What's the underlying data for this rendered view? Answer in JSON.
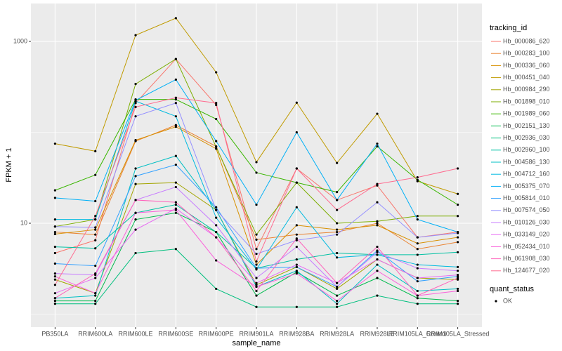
{
  "chart_data": {
    "type": "line",
    "log_y": true,
    "xlabel": "sample_name",
    "ylabel": "FPKM + 1",
    "categories": [
      "PB350LA",
      "RRIM600LA",
      "RRIM600LE",
      "RRIM600SE",
      "RRIM600PE",
      "RRIM901LA",
      "RRIM928BA",
      "RRIM928LA",
      "RRIM928LE",
      "RRIM105LA_Control",
      "RRIM105LA_Stressed"
    ],
    "ylim": [
      0.72,
      2610
    ],
    "yticks": [
      10,
      1000
    ],
    "minor_yticks": [
      1,
      100
    ],
    "grid": true,
    "legend_title": "tracking_id",
    "legend_position": "right",
    "point_legend_title": "quant_status",
    "point_legend_label": "OK",
    "point_color": "#000000",
    "series": [
      {
        "name": "Hb_000086_620",
        "color": "#F8766D",
        "values": [
          4.7,
          6.5,
          210,
          640,
          200,
          5.2,
          40,
          18,
          26,
          7,
          8
        ]
      },
      {
        "name": "Hb_000283_100",
        "color": "#EA8331",
        "values": [
          8,
          7.5,
          80,
          120,
          70,
          6.6,
          7.5,
          8,
          10,
          5.2,
          6.2
        ]
      },
      {
        "name": "Hb_000336_060",
        "color": "#D89000",
        "values": [
          7.6,
          8.5,
          82,
          115,
          66,
          3.5,
          9.5,
          8.5,
          9.5,
          6,
          7
        ]
      },
      {
        "name": "Hb_000451_040",
        "color": "#C09B00",
        "values": [
          75,
          62,
          1170,
          1800,
          457,
          47,
          212,
          46,
          160,
          29,
          21
        ]
      },
      {
        "name": "Hb_000984_290",
        "color": "#A3A500",
        "values": [
          2.4,
          1.7,
          27,
          28,
          14,
          2.1,
          3.3,
          1.9,
          4,
          2.5,
          2.4
        ]
      },
      {
        "name": "Hb_001898_010",
        "color": "#7CAE00",
        "values": [
          9.2,
          11,
          340,
          640,
          69,
          7.5,
          28,
          10,
          10.5,
          12,
          12
        ]
      },
      {
        "name": "Hb_001989_060",
        "color": "#39B600",
        "values": [
          23,
          34,
          230,
          230,
          140,
          36,
          28,
          22,
          70,
          30,
          16
        ]
      },
      {
        "name": "Hb_002151_130",
        "color": "#00BB4E",
        "values": [
          1.4,
          1.4,
          11,
          13,
          8,
          1.6,
          2.9,
          1.6,
          2.5,
          1.5,
          1.4
        ]
      },
      {
        "name": "Hb_002936_030",
        "color": "#00BF7D",
        "values": [
          1.3,
          1.3,
          4.7,
          5.2,
          1.9,
          1.2,
          1.2,
          1.2,
          1.6,
          1.3,
          1.3
        ]
      },
      {
        "name": "Hb_002960_100",
        "color": "#00C1A3",
        "values": [
          5.5,
          5.3,
          13,
          16,
          8,
          3.2,
          4,
          4.7,
          4.5,
          4.5,
          4.8
        ]
      },
      {
        "name": "Hb_004586_130",
        "color": "#00BFC4",
        "values": [
          1.5,
          1.6,
          40,
          55,
          14,
          2,
          3,
          1.3,
          3.5,
          1.8,
          1.9
        ]
      },
      {
        "name": "Hb_004712_160",
        "color": "#00BAE0",
        "values": [
          11,
          11,
          220,
          150,
          11.5,
          3.1,
          15,
          4.2,
          4.5,
          3.5,
          3.3
        ]
      },
      {
        "name": "Hb_005375_070",
        "color": "#00B0F6",
        "values": [
          19,
          17.5,
          225,
          380,
          80,
          16,
          100,
          18,
          75,
          11,
          8
        ]
      },
      {
        "name": "Hb_005814_010",
        "color": "#35A2FF",
        "values": [
          3.6,
          3.4,
          33,
          44,
          15,
          3.2,
          3.3,
          2,
          5,
          2.3,
          2.6
        ]
      },
      {
        "name": "Hb_007574_050",
        "color": "#9590FF",
        "values": [
          9.2,
          9,
          150,
          210,
          14,
          4.6,
          6.5,
          7.5,
          17,
          7,
          7.8
        ]
      },
      {
        "name": "Hb_010126_030",
        "color": "#C77CFF",
        "values": [
          2.8,
          2.7,
          18,
          25,
          9.5,
          2.5,
          5.5,
          2,
          4.8,
          3.2,
          3
        ]
      },
      {
        "name": "Hb_033149_020",
        "color": "#E76BF3",
        "values": [
          1.7,
          2.5,
          8.5,
          14.5,
          7,
          2.2,
          3.5,
          2.2,
          4,
          2.5,
          2.7
        ]
      },
      {
        "name": "Hb_052434_010",
        "color": "#FA62DB",
        "values": [
          2.6,
          1.7,
          13,
          14,
          3.9,
          2,
          2.8,
          1.4,
          3,
          1.6,
          1.8
        ]
      },
      {
        "name": "Hb_061908_030",
        "color": "#FF62BC",
        "values": [
          1.5,
          2.8,
          18,
          17,
          7,
          1.8,
          6.8,
          2.2,
          5.5,
          1.6,
          2.5
        ]
      },
      {
        "name": "Hb_124677_020",
        "color": "#FF6C90",
        "values": [
          2.1,
          12,
          190,
          240,
          210,
          3.8,
          40,
          14,
          27,
          32,
          40
        ]
      }
    ]
  }
}
